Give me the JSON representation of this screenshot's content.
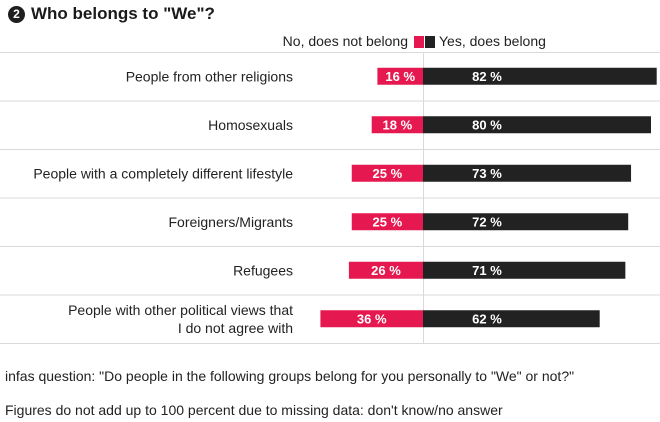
{
  "header": {
    "number": "2",
    "title": "Who belongs to \"We\"?"
  },
  "legend": {
    "no_label": "No, does not belong",
    "yes_label": "Yes, does belong"
  },
  "colors": {
    "no": "#e5194f",
    "yes": "#222222",
    "divider": "#d9d9d9",
    "label_text": "#ffffff"
  },
  "chart_data": {
    "type": "bar",
    "categories": [
      [
        "People from other religions"
      ],
      [
        "Homosexuals"
      ],
      [
        "People with a completely different lifestyle"
      ],
      [
        "Foreigners/Migrants"
      ],
      [
        "Refugees"
      ],
      [
        "People with other political views that",
        "I do not agree with"
      ]
    ],
    "series": [
      {
        "name": "No, does not belong",
        "values": [
          16,
          18,
          25,
          25,
          26,
          36
        ]
      },
      {
        "name": "Yes, does belong",
        "values": [
          82,
          80,
          73,
          72,
          71,
          62
        ]
      }
    ],
    "value_suffix": " %"
  },
  "footnotes": [
    "infas question: \"Do people in the following groups belong for you personally to \"We\" or not?\"",
    "Figures do not add up to 100 percent due to missing data: don't know/no answer"
  ]
}
